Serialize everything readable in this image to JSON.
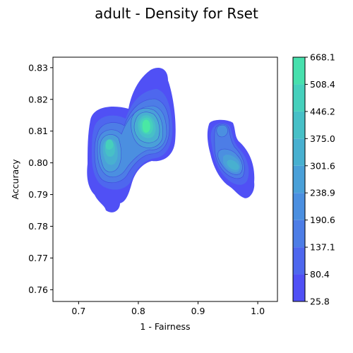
{
  "chart_data": {
    "type": "heatmap",
    "title": "adult - Density for Rset",
    "xlabel": "1 - Fairness",
    "ylabel": "Accuracy",
    "xlim": [
      0.657,
      1.033
    ],
    "ylim": [
      0.7563,
      0.8333
    ],
    "xticks": [
      0.7,
      0.8,
      0.9,
      1.0
    ],
    "xtick_labels": [
      "0.7",
      "0.8",
      "0.9",
      "1.0"
    ],
    "yticks": [
      0.76,
      0.77,
      0.78,
      0.79,
      0.8,
      0.81,
      0.82,
      0.83
    ],
    "ytick_labels": [
      "0.76",
      "0.77",
      "0.78",
      "0.79",
      "0.80",
      "0.81",
      "0.82",
      "0.83"
    ],
    "colorbar": {
      "levels": [
        25.8,
        80.4,
        137.1,
        190.6,
        238.9,
        301.6,
        375.0,
        446.2,
        508.4,
        668.1
      ],
      "labels": [
        "25.8",
        "80.4",
        "137.1",
        "190.6",
        "238.9",
        "301.6",
        "375.0",
        "446.2",
        "508.4",
        "668.1"
      ],
      "colors": [
        "#5050f5",
        "#4e67ee",
        "#4d7de6",
        "#4b8fe0",
        "#4aa0d8",
        "#48b0d0",
        "#47c0c7",
        "#46d0bc",
        "#47e0ad",
        "#4ae8a4"
      ]
    },
    "clusters": [
      {
        "name": "left-lobe",
        "peak": [
          0.752,
          0.8052
        ],
        "peak_density": 446.2
      },
      {
        "name": "center-lobe",
        "peak": [
          0.812,
          0.8115
        ],
        "peak_density": 668.1
      },
      {
        "name": "right-lobe",
        "peak": [
          0.963,
          0.7985
        ],
        "peak_density": 301.6
      },
      {
        "name": "right-top-lobe",
        "peak": [
          0.937,
          0.81
        ],
        "peak_density": 190.6
      }
    ],
    "grid": false,
    "legend": "colorbar-right"
  }
}
